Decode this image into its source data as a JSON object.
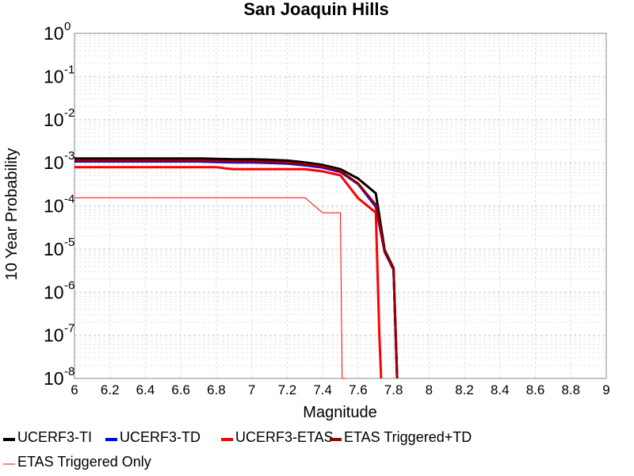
{
  "chart_data": {
    "type": "line",
    "title": "San Joaquin Hills",
    "xlabel": "Magnitude",
    "ylabel": "10 Year Probability",
    "xlim": [
      6,
      9
    ],
    "ylim": [
      1e-08,
      1
    ],
    "yscale": "log",
    "grid": true,
    "legend_position": "bottom",
    "x_ticks": [
      "6",
      "6.2",
      "6.4",
      "6.6",
      "6.8",
      "7",
      "7.2",
      "7.4",
      "7.6",
      "7.8",
      "8",
      "8.2",
      "8.4",
      "8.6",
      "8.8",
      "9"
    ],
    "y_ticks": [
      {
        "base": "10",
        "exp": "0"
      },
      {
        "base": "10",
        "exp": "-1"
      },
      {
        "base": "10",
        "exp": "-2"
      },
      {
        "base": "10",
        "exp": "-3"
      },
      {
        "base": "10",
        "exp": "-4"
      },
      {
        "base": "10",
        "exp": "-5"
      },
      {
        "base": "10",
        "exp": "-6"
      },
      {
        "base": "10",
        "exp": "-7"
      },
      {
        "base": "10",
        "exp": "-8"
      }
    ],
    "series": [
      {
        "name": "UCERF3-TI",
        "color": "#000000",
        "width": 3,
        "x": [
          6.0,
          6.1,
          6.2,
          6.3,
          6.4,
          6.5,
          6.6,
          6.7,
          6.8,
          6.9,
          7.0,
          7.1,
          7.2,
          7.3,
          7.4,
          7.5,
          7.6,
          7.7,
          7.75,
          7.8,
          7.82
        ],
        "y": [
          0.00126,
          0.00126,
          0.00126,
          0.00126,
          0.00126,
          0.00126,
          0.00126,
          0.00126,
          0.00123,
          0.0012,
          0.0012,
          0.00117,
          0.00112,
          0.00102,
          0.00089,
          0.00071,
          0.00043,
          0.000195,
          9.5e-06,
          3.6e-06,
          1e-08
        ]
      },
      {
        "name": "UCERF3-TD",
        "color": "#0000ff",
        "width": 3,
        "x": [
          6.0,
          6.1,
          6.2,
          6.3,
          6.4,
          6.5,
          6.6,
          6.7,
          6.8,
          6.9,
          7.0,
          7.1,
          7.2,
          7.3,
          7.4,
          7.5,
          7.6,
          7.7,
          7.75,
          7.8,
          7.82
        ],
        "y": [
          0.00107,
          0.00107,
          0.00107,
          0.00107,
          0.00107,
          0.00107,
          0.00107,
          0.00107,
          0.00104,
          0.00102,
          0.00102,
          0.00099,
          0.00095,
          0.00087,
          0.00077,
          0.00061,
          0.00032,
          9.5e-05,
          8.5e-06,
          3.3e-06,
          1e-08
        ]
      },
      {
        "name": "UCERF3-ETAS",
        "color": "#ff0000",
        "width": 3,
        "x": [
          6.0,
          6.1,
          6.2,
          6.3,
          6.4,
          6.5,
          6.6,
          6.7,
          6.8,
          6.85,
          6.9,
          7.0,
          7.1,
          7.2,
          7.3,
          7.4,
          7.5,
          7.6,
          7.7,
          7.72,
          7.73
        ],
        "y": [
          0.00079,
          0.00079,
          0.00079,
          0.00079,
          0.00079,
          0.00079,
          0.00079,
          0.00079,
          0.00079,
          0.00074,
          0.00071,
          0.00071,
          0.00071,
          0.00071,
          0.00071,
          0.00063,
          0.00051,
          0.00015,
          7e-05,
          1e-07,
          1e-08
        ]
      },
      {
        "name": "ETAS Triggered+TD",
        "color": "#990000",
        "width": 3,
        "x": [
          6.0,
          6.1,
          6.2,
          6.3,
          6.4,
          6.5,
          6.6,
          6.7,
          6.8,
          6.9,
          7.0,
          7.1,
          7.2,
          7.3,
          7.4,
          7.5,
          7.6,
          7.7,
          7.75,
          7.8,
          7.82
        ],
        "y": [
          0.00112,
          0.00112,
          0.00112,
          0.00112,
          0.00112,
          0.00112,
          0.00112,
          0.00112,
          0.0011,
          0.00107,
          0.00107,
          0.00104,
          0.001,
          0.00092,
          0.00081,
          0.00064,
          0.00033,
          0.000105,
          8.8e-06,
          3.4e-06,
          1e-08
        ]
      },
      {
        "name": "ETAS Triggered Only",
        "color": "#ff0000",
        "width": 1,
        "x": [
          6.0,
          6.2,
          6.4,
          6.6,
          6.8,
          7.0,
          7.2,
          7.3,
          7.4,
          7.5,
          7.51,
          7.53
        ],
        "y": [
          0.000155,
          0.000155,
          0.000155,
          0.000155,
          0.000155,
          0.000155,
          0.000155,
          0.000155,
          6.9e-05,
          6.9e-05,
          2e-09,
          1e-08
        ]
      }
    ],
    "legend": [
      {
        "name": "UCERF3-TI",
        "color": "#000000",
        "width": 3
      },
      {
        "name": "UCERF3-TD",
        "color": "#0000ff",
        "width": 3
      },
      {
        "name": "UCERF3-ETAS",
        "color": "#ff0000",
        "width": 3
      },
      {
        "name": "ETAS Triggered+TD",
        "color": "#990000",
        "width": 3
      },
      {
        "name": "ETAS Triggered Only",
        "color": "#ff0000",
        "width": 1
      }
    ]
  }
}
